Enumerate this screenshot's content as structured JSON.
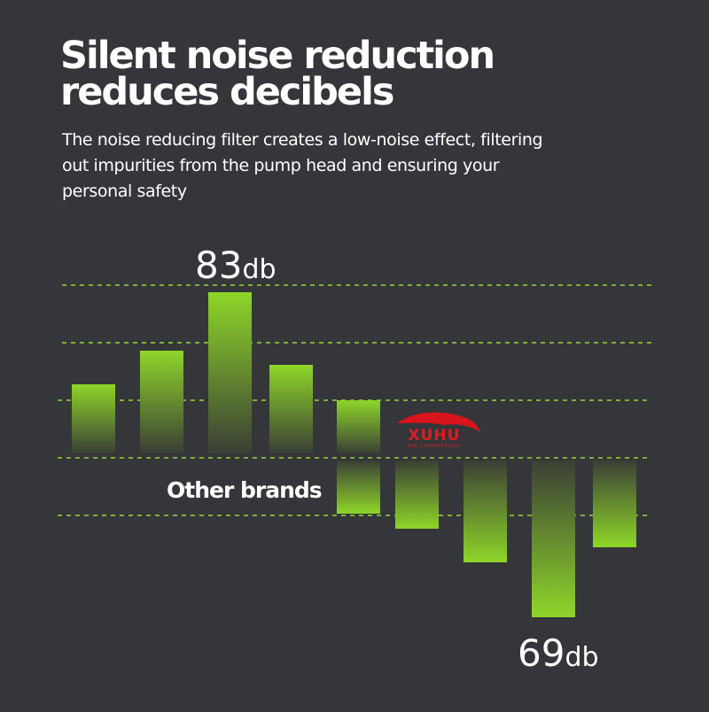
{
  "header": {
    "title_lines": [
      "Silent noise reduction",
      "reduces decibels"
    ],
    "subtitle_lines": [
      "The noise reducing filter creates a low-noise effect, filtering",
      "out impurities from the pump head and ensuring your",
      "personal safety"
    ]
  },
  "graphic": {
    "high_label": {
      "number": "83",
      "unit": "db"
    },
    "low_label": {
      "number": "69",
      "unit": "db"
    },
    "other_label": "Other brands",
    "logo": {
      "name": "XUHU",
      "tagline": "AIR COMPRESSOR"
    }
  }
}
